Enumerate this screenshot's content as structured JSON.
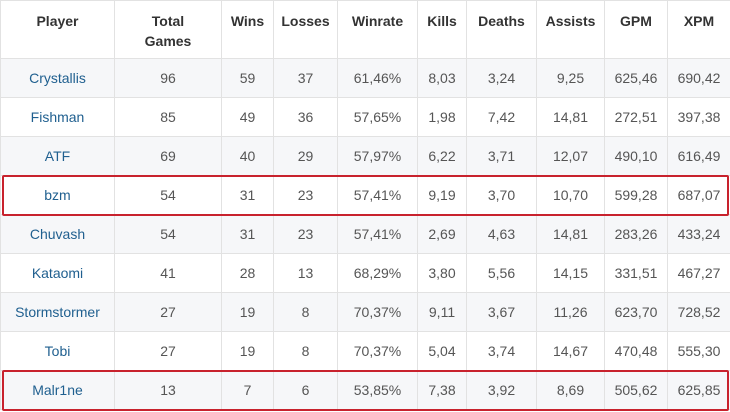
{
  "table": {
    "headers": {
      "player": "Player",
      "total_games_line1": "Total",
      "total_games_line2": "Games",
      "wins": "Wins",
      "losses": "Losses",
      "winrate": "Winrate",
      "kills": "Kills",
      "deaths": "Deaths",
      "assists": "Assists",
      "gpm": "GPM",
      "xpm": "XPM"
    },
    "rows": [
      {
        "player": "Crystallis",
        "total": "96",
        "wins": "59",
        "losses": "37",
        "winrate": "61,46%",
        "kills": "8,03",
        "deaths": "3,24",
        "assists": "9,25",
        "gpm": "625,46",
        "xpm": "690,42"
      },
      {
        "player": "Fishman",
        "total": "85",
        "wins": "49",
        "losses": "36",
        "winrate": "57,65%",
        "kills": "1,98",
        "deaths": "7,42",
        "assists": "14,81",
        "gpm": "272,51",
        "xpm": "397,38"
      },
      {
        "player": "ATF",
        "total": "69",
        "wins": "40",
        "losses": "29",
        "winrate": "57,97%",
        "kills": "6,22",
        "deaths": "3,71",
        "assists": "12,07",
        "gpm": "490,10",
        "xpm": "616,49"
      },
      {
        "player": "bzm",
        "total": "54",
        "wins": "31",
        "losses": "23",
        "winrate": "57,41%",
        "kills": "9,19",
        "deaths": "3,70",
        "assists": "10,70",
        "gpm": "599,28",
        "xpm": "687,07"
      },
      {
        "player": "Chuvash",
        "total": "54",
        "wins": "31",
        "losses": "23",
        "winrate": "57,41%",
        "kills": "2,69",
        "deaths": "4,63",
        "assists": "14,81",
        "gpm": "283,26",
        "xpm": "433,24"
      },
      {
        "player": "Kataomi",
        "total": "41",
        "wins": "28",
        "losses": "13",
        "winrate": "68,29%",
        "kills": "3,80",
        "deaths": "5,56",
        "assists": "14,15",
        "gpm": "331,51",
        "xpm": "467,27"
      },
      {
        "player": "Stormstormer",
        "total": "27",
        "wins": "19",
        "losses": "8",
        "winrate": "70,37%",
        "kills": "9,11",
        "deaths": "3,67",
        "assists": "11,26",
        "gpm": "623,70",
        "xpm": "728,52"
      },
      {
        "player": "Tobi",
        "total": "27",
        "wins": "19",
        "losses": "8",
        "winrate": "70,37%",
        "kills": "5,04",
        "deaths": "3,74",
        "assists": "14,67",
        "gpm": "470,48",
        "xpm": "555,30"
      },
      {
        "player": "Malr1ne",
        "total": "13",
        "wins": "7",
        "losses": "6",
        "winrate": "53,85%",
        "kills": "7,38",
        "deaths": "3,92",
        "assists": "8,69",
        "gpm": "505,62",
        "xpm": "625,85"
      }
    ],
    "highlighted_rows": [
      3,
      8
    ]
  },
  "colors": {
    "highlight_border": "#c8222d",
    "player_link": "#1f5f8f",
    "stripe": "#f6f7f9",
    "grid": "#e2e2e2"
  }
}
